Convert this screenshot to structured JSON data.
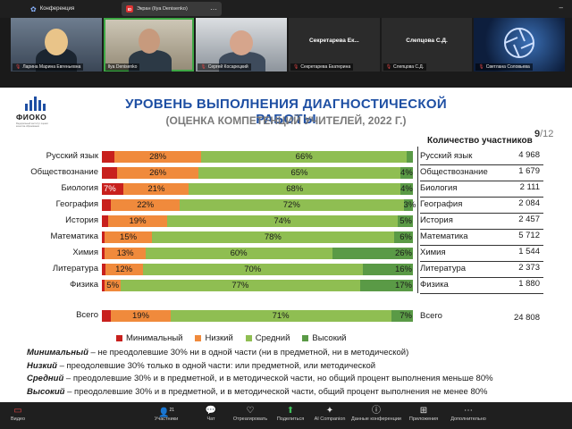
{
  "app": {
    "meeting_label": "Конференция",
    "screen_share_label": "Экран (Ilya Denisenko)",
    "rec_badge": "ID"
  },
  "participants": [
    {
      "name": "Ларина Марина Евгеньевна",
      "muted": true,
      "type": "video"
    },
    {
      "name": "Ilya Denisenko",
      "muted": false,
      "type": "video",
      "active": true
    },
    {
      "name": "Сергей Косарецкий",
      "muted": true,
      "type": "video"
    },
    {
      "name": "Секретарева Екатерина",
      "display": "Секретарева Ек...",
      "muted": true,
      "type": "name"
    },
    {
      "name": "Слепцова С.Д.",
      "display": "Слепцова С.Д.",
      "muted": true,
      "type": "name"
    },
    {
      "name": "Светлана Соловьева",
      "muted": true,
      "type": "image"
    }
  ],
  "slide": {
    "logo_text": "ФИОКО",
    "logo_subtitle": "Федеральный институт оценки качества образования",
    "title": "УРОВЕНЬ ВЫПОЛНЕНИЯ ДИАГНОСТИЧЕСКОЙ РАБОТЫ",
    "subtitle": "(ОЦЕНКА КОМПЕТЕНЦИЙ УЧИТЕЛЕЙ, 2022 Г.)",
    "page_current": "9",
    "page_total": "/12",
    "count_header": "Количество участников",
    "total_label": "Всего",
    "total_count": "24 808",
    "definitions": [
      {
        "term": "Минимальный",
        "text": " – не преодолевшие 30% ни в одной части (ни в предметной, ни в методической)"
      },
      {
        "term": "Низкий",
        "text": " –  преодолевшие 30% только в одной части: или предметной, или методической"
      },
      {
        "term": "Средний",
        "text": " – преодолевшие 30% и в предметной, и в методической части, но общий процент выполнения меньше 80%"
      },
      {
        "term": "Высокий",
        "text": " – преодолевшие 30% и в предметной, и в методической части, общий процент выполнения не менее 80%"
      }
    ]
  },
  "chart_data": {
    "type": "bar",
    "stacked": true,
    "orientation": "horizontal",
    "categories": [
      "Русский язык",
      "Обществознание",
      "Биология",
      "География",
      "История",
      "Математика",
      "Химия",
      "Литература",
      "Физика",
      "Всего"
    ],
    "series": [
      {
        "name": "Минимальный",
        "color": "#c8201d",
        "values": [
          4,
          5,
          7,
          3,
          2,
          1,
          1,
          1,
          1,
          3
        ]
      },
      {
        "name": "Низкий",
        "color": "#f08a3c",
        "values": [
          28,
          26,
          21,
          22,
          19,
          15,
          13,
          12,
          5,
          19
        ]
      },
      {
        "name": "Средний",
        "color": "#8fbe52",
        "values": [
          66,
          65,
          68,
          72,
          74,
          78,
          60,
          70,
          77,
          71
        ]
      },
      {
        "name": "Высокий",
        "color": "#5a9a46",
        "values": [
          2,
          4,
          4,
          3,
          5,
          6,
          26,
          16,
          17,
          7
        ]
      }
    ],
    "data_labels": {
      "Минимальный": [
        "",
        "",
        "7%",
        "",
        "",
        "",
        "",
        "",
        "",
        ""
      ],
      "Низкий": [
        "28%",
        "26%",
        "21%",
        "22%",
        "19%",
        "15%",
        "13%",
        "12%",
        "5%",
        "19%"
      ],
      "Средний": [
        "66%",
        "65%",
        "68%",
        "72%",
        "74%",
        "78%",
        "60%",
        "70%",
        "77%",
        "71%"
      ],
      "Высокий": [
        "",
        "4%",
        "4%",
        "3%",
        "5%",
        "6%",
        "26%",
        "16%",
        "17%",
        "7%"
      ]
    },
    "participant_counts": [
      "4 968",
      "1 679",
      "2 111",
      "2 084",
      "2 457",
      "5 712",
      "1 544",
      "2 373",
      "1 880",
      "24 808"
    ],
    "legend_position": "bottom"
  },
  "toolbar": {
    "video": "Видео",
    "participants": "Участники",
    "participants_count": "21",
    "chat": "Чат",
    "react": "Отреагировать",
    "share": "Поделиться",
    "ai": "AI Companion",
    "conf_data": "Данные конференции",
    "apps": "Приложения",
    "more": "Дополнительно"
  }
}
